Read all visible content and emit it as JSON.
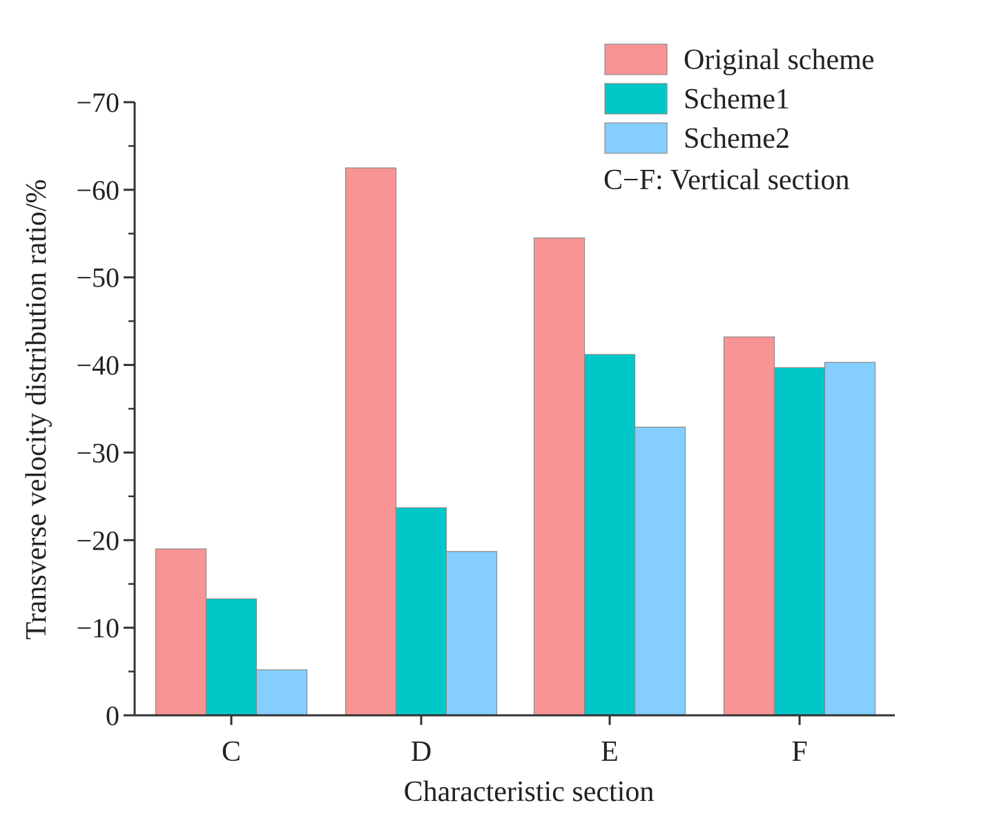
{
  "chart_data": {
    "type": "bar",
    "title": "",
    "xlabel": "Characteristic section",
    "ylabel": "Transverse velocity distribution ratio/%",
    "categories": [
      "C",
      "D",
      "E",
      "F"
    ],
    "series": [
      {
        "name": "Original scheme",
        "color": "#F99494",
        "values": [
          -19,
          -62.5,
          -54.5,
          -43.2
        ]
      },
      {
        "name": "Scheme1",
        "color": "#00C8C8",
        "values": [
          -13.3,
          -23.7,
          -41.2,
          -39.7
        ]
      },
      {
        "name": "Scheme2",
        "color": "#84CFFF",
        "values": [
          -5.2,
          -18.7,
          -32.9,
          -40.3
        ]
      }
    ],
    "ylim": [
      0,
      -70
    ],
    "yticks": [
      0,
      -10,
      -20,
      -30,
      -40,
      -50,
      -60,
      -70
    ],
    "ytick_labels": [
      "0",
      "−10",
      "−20",
      "−30",
      "−40",
      "−50",
      "−60",
      "−70"
    ],
    "note": "C−F: Vertical section",
    "legend_position": "top-right",
    "grid": false
  }
}
